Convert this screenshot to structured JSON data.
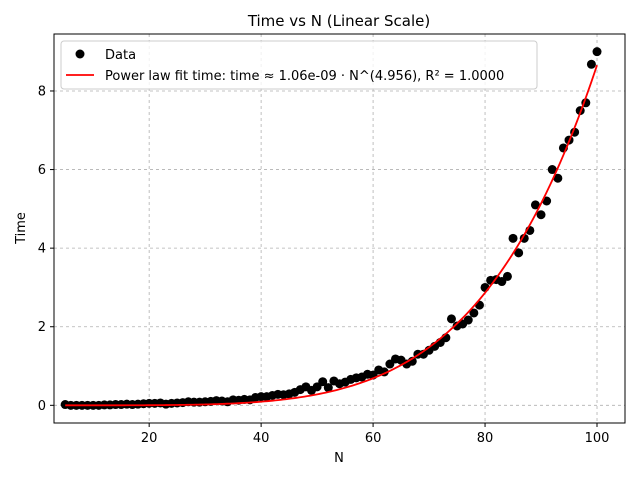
{
  "chart_data": {
    "type": "scatter",
    "title": "Time vs N (Linear Scale)",
    "xlabel": "N",
    "ylabel": "Time",
    "xlim": [
      3,
      105
    ],
    "ylim": [
      -0.45,
      9.45
    ],
    "xticks": [
      20,
      40,
      60,
      80,
      100
    ],
    "yticks": [
      0,
      2,
      4,
      6,
      8
    ],
    "grid": true,
    "legend_position": "top-left",
    "series": [
      {
        "name": "Data",
        "kind": "scatter",
        "color": "#000000",
        "x": [
          5,
          6,
          7,
          8,
          9,
          10,
          11,
          12,
          13,
          14,
          15,
          16,
          17,
          18,
          19,
          20,
          21,
          22,
          23,
          24,
          25,
          26,
          27,
          28,
          29,
          30,
          31,
          32,
          33,
          34,
          35,
          36,
          37,
          38,
          39,
          40,
          41,
          42,
          43,
          44,
          45,
          46,
          47,
          48,
          49,
          50,
          51,
          52,
          53,
          54,
          55,
          56,
          57,
          58,
          59,
          60,
          61,
          62,
          63,
          64,
          65,
          66,
          67,
          68,
          69,
          70,
          71,
          72,
          73,
          74,
          75,
          76,
          77,
          78,
          79,
          80,
          81,
          82,
          83,
          84,
          85,
          86,
          87,
          88,
          89,
          90,
          91,
          92,
          93,
          94,
          95,
          96,
          97,
          98,
          99,
          100
        ],
        "y": [
          0.02,
          0.0,
          0.0,
          0.0,
          0.0,
          0.0,
          0.0,
          0.01,
          0.01,
          0.02,
          0.02,
          0.03,
          0.02,
          0.03,
          0.04,
          0.05,
          0.05,
          0.06,
          0.03,
          0.05,
          0.06,
          0.07,
          0.09,
          0.08,
          0.08,
          0.09,
          0.1,
          0.12,
          0.11,
          0.09,
          0.14,
          0.13,
          0.15,
          0.14,
          0.2,
          0.22,
          0.22,
          0.25,
          0.28,
          0.27,
          0.29,
          0.33,
          0.4,
          0.47,
          0.38,
          0.47,
          0.6,
          0.45,
          0.62,
          0.55,
          0.59,
          0.66,
          0.7,
          0.72,
          0.79,
          0.77,
          0.9,
          0.85,
          1.05,
          1.18,
          1.15,
          1.05,
          1.12,
          1.3,
          1.3,
          1.4,
          1.5,
          1.6,
          1.72,
          2.2,
          2.02,
          2.07,
          2.17,
          2.35,
          2.55,
          3.0,
          3.18,
          3.2,
          3.15,
          3.28,
          4.25,
          3.88,
          4.25,
          4.45,
          5.1,
          4.85,
          5.2,
          6.0,
          5.78,
          6.55,
          6.75,
          6.95,
          7.5,
          7.7,
          8.68,
          9.0
        ]
      },
      {
        "name": "Power law fit time: time ≈ 1.06e-09 · N^(4.956), R² = 1.0000",
        "kind": "line",
        "color": "#ff0000",
        "coef": 1.06e-09,
        "exponent": 4.956,
        "x_range": [
          5,
          100
        ]
      }
    ]
  }
}
